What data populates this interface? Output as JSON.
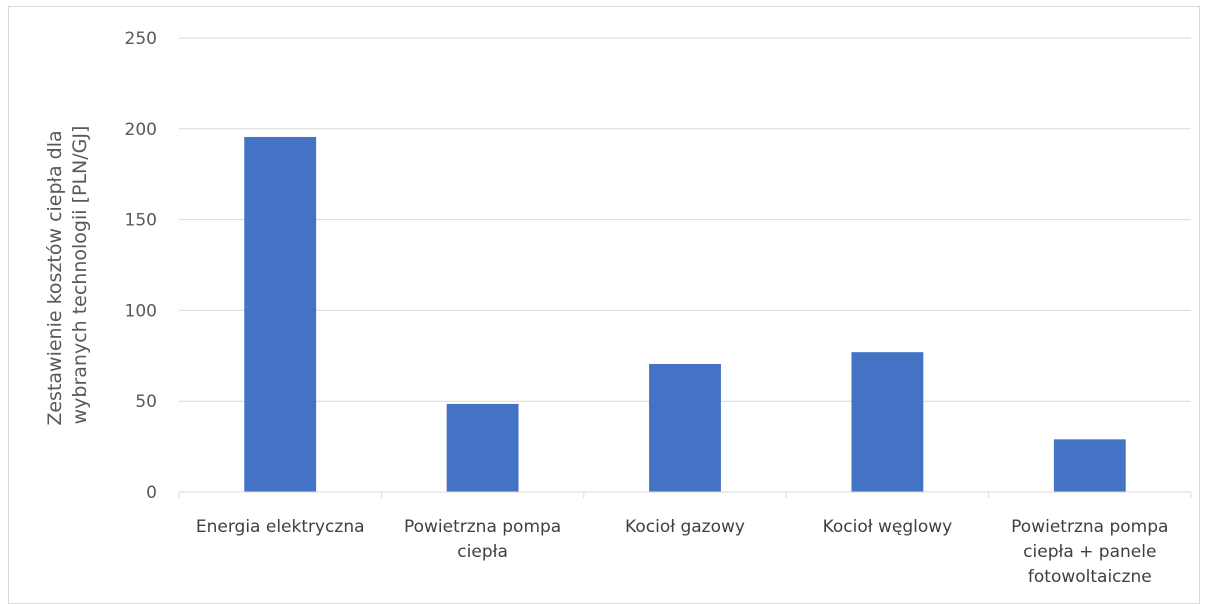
{
  "chart_data": {
    "type": "bar",
    "title": "",
    "xlabel": "",
    "ylabel_lines": [
      "Zestawienie kosztów ciepła dla",
      "wybranych technologii [PLN/GJ]"
    ],
    "categories": [
      [
        "Energia elektryczna"
      ],
      [
        "Powietrzna pompa",
        "ciepła"
      ],
      [
        "Kocioł gazowy"
      ],
      [
        "Kocioł węglowy"
      ],
      [
        "Powietrzna pompa",
        "ciepła + panele",
        "fotowoltaiczne"
      ]
    ],
    "values": [
      195.5,
      48.5,
      70.5,
      77,
      29
    ],
    "ylim": [
      0,
      250
    ],
    "yticks": [
      0,
      50,
      100,
      150,
      200,
      250
    ],
    "grid": true,
    "bar_color": "#4472c4",
    "grid_color": "#d9d9d9"
  }
}
